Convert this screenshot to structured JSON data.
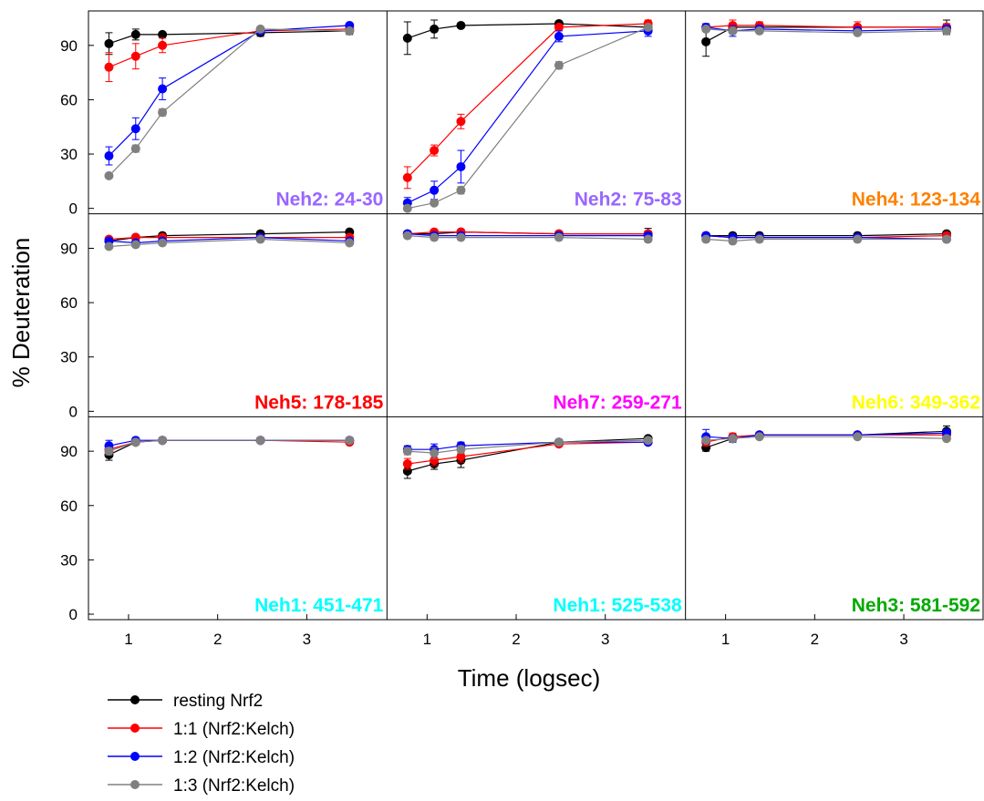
{
  "chart_data": {
    "type": "line",
    "ylabel": "% Deuteration",
    "xlabel": "Time (logsec)",
    "xlim": [
      0.55,
      3.9
    ],
    "ylim": [
      0,
      105
    ],
    "x_ticks": [
      1,
      2,
      3
    ],
    "y_ticks": [
      0,
      30,
      60,
      90
    ],
    "grid": false,
    "legend_position": "bottom-left",
    "series_styles": [
      {
        "name": "resting Nrf2",
        "color": "#000000"
      },
      {
        "name": "1:1 (Nrf2:Kelch)",
        "color": "#ff0000"
      },
      {
        "name": "1:2 (Nrf2:Kelch)",
        "color": "#0000ff"
      },
      {
        "name": "1:3 (Nrf2:Kelch)",
        "color": "#808080"
      }
    ],
    "panels": [
      {
        "label": "Neh2: 24-30",
        "label_color": "#9966ff",
        "x": [
          0.78,
          1.08,
          1.38,
          2.48,
          3.48
        ],
        "series": [
          {
            "name": "resting Nrf2",
            "values": [
              91,
              96,
              96,
              97,
              98
            ],
            "errors": [
              6,
              3,
              1,
              2,
              2
            ]
          },
          {
            "name": "1:1 (Nrf2:Kelch)",
            "values": [
              78,
              84,
              90,
              98,
              99
            ],
            "errors": [
              8,
              7,
              4,
              1,
              1
            ]
          },
          {
            "name": "1:2 (Nrf2:Kelch)",
            "values": [
              29,
              44,
              66,
              98,
              101
            ],
            "errors": [
              5,
              6,
              6,
              1,
              1
            ]
          },
          {
            "name": "1:3 (Nrf2:Kelch)",
            "values": [
              18,
              33,
              53,
              99,
              98
            ],
            "errors": [
              1,
              2,
              2,
              1,
              1
            ]
          }
        ]
      },
      {
        "label": "Neh2: 75-83",
        "label_color": "#9966ff",
        "x": [
          0.78,
          1.08,
          1.38,
          2.48,
          3.48
        ],
        "series": [
          {
            "name": "resting Nrf2",
            "values": [
              94,
              99,
              101,
              102,
              100
            ],
            "errors": [
              9,
              5,
              1,
              1,
              2
            ]
          },
          {
            "name": "1:1 (Nrf2:Kelch)",
            "values": [
              17,
              32,
              48,
              100,
              102
            ],
            "errors": [
              6,
              3,
              4,
              1,
              2
            ]
          },
          {
            "name": "1:2 (Nrf2:Kelch)",
            "values": [
              3,
              10,
              23,
              95,
              98
            ],
            "errors": [
              3,
              5,
              9,
              3,
              3
            ]
          },
          {
            "name": "1:3 (Nrf2:Kelch)",
            "values": [
              0,
              3,
              10,
              79,
              100
            ],
            "errors": [
              1,
              1,
              2,
              2,
              1
            ]
          }
        ]
      },
      {
        "label": "Neh4: 123-134",
        "label_color": "#ff8000",
        "x": [
          0.78,
          1.08,
          1.38,
          2.48,
          3.48
        ],
        "series": [
          {
            "name": "resting Nrf2",
            "values": [
              92,
              100,
              100,
              100,
              100
            ],
            "errors": [
              8,
              2,
              1,
              1,
              4
            ]
          },
          {
            "name": "1:1 (Nrf2:Kelch)",
            "values": [
              100,
              101,
              101,
              100,
              100
            ],
            "errors": [
              2,
              3,
              2,
              3,
              2
            ]
          },
          {
            "name": "1:2 (Nrf2:Kelch)",
            "values": [
              100,
              98,
              99,
              98,
              99
            ],
            "errors": [
              2,
              3,
              2,
              2,
              2
            ]
          },
          {
            "name": "1:3 (Nrf2:Kelch)",
            "values": [
              99,
              98,
              98,
              97,
              98
            ],
            "errors": [
              1,
              1,
              1,
              1,
              1
            ]
          }
        ]
      },
      {
        "label": "Neh5: 178-185",
        "label_color": "#ff0000",
        "x": [
          0.78,
          1.08,
          1.38,
          2.48,
          3.48
        ],
        "series": [
          {
            "name": "resting Nrf2",
            "values": [
              94,
              96,
              97,
              98,
              99
            ],
            "errors": [
              2,
              1,
              1,
              1,
              1
            ]
          },
          {
            "name": "1:1 (Nrf2:Kelch)",
            "values": [
              95,
              96,
              96,
              96,
              96
            ],
            "errors": [
              1,
              1,
              1,
              1,
              1
            ]
          },
          {
            "name": "1:2 (Nrf2:Kelch)",
            "values": [
              94,
              93,
              94,
              96,
              94
            ],
            "errors": [
              1,
              1,
              1,
              1,
              1
            ]
          },
          {
            "name": "1:3 (Nrf2:Kelch)",
            "values": [
              91,
              92,
              93,
              95,
              93
            ],
            "errors": [
              1,
              1,
              1,
              1,
              1
            ]
          }
        ]
      },
      {
        "label": "Neh7: 259-271",
        "label_color": "#ff00ff",
        "x": [
          0.78,
          1.08,
          1.38,
          2.48,
          3.48
        ],
        "series": [
          {
            "name": "resting Nrf2",
            "values": [
              98,
              98,
              99,
              98,
              98
            ],
            "errors": [
              1,
              1,
              1,
              1,
              3
            ]
          },
          {
            "name": "1:1 (Nrf2:Kelch)",
            "values": [
              98,
              99,
              99,
              98,
              98
            ],
            "errors": [
              1,
              1,
              1,
              1,
              1
            ]
          },
          {
            "name": "1:2 (Nrf2:Kelch)",
            "values": [
              98,
              97,
              97,
              97,
              97
            ],
            "errors": [
              1,
              1,
              1,
              1,
              1
            ]
          },
          {
            "name": "1:3 (Nrf2:Kelch)",
            "values": [
              97,
              96,
              96,
              96,
              95
            ],
            "errors": [
              1,
              1,
              1,
              1,
              1
            ]
          }
        ]
      },
      {
        "label": "Neh6: 349-362",
        "label_color": "#ffff00",
        "x": [
          0.78,
          1.08,
          1.38,
          2.48,
          3.48
        ],
        "series": [
          {
            "name": "resting Nrf2",
            "values": [
              97,
              97,
              97,
              97,
              98
            ],
            "errors": [
              1,
              1,
              1,
              1,
              1
            ]
          },
          {
            "name": "1:1 (Nrf2:Kelch)",
            "values": [
              97,
              96,
              96,
              96,
              97
            ],
            "errors": [
              1,
              1,
              1,
              1,
              1
            ]
          },
          {
            "name": "1:2 (Nrf2:Kelch)",
            "values": [
              97,
              96,
              96,
              96,
              95
            ],
            "errors": [
              1,
              1,
              1,
              1,
              1
            ]
          },
          {
            "name": "1:3 (Nrf2:Kelch)",
            "values": [
              95,
              94,
              95,
              95,
              95
            ],
            "errors": [
              1,
              1,
              1,
              1,
              1
            ]
          }
        ]
      },
      {
        "label": "Neh1: 451-471",
        "label_color": "#00ffff",
        "x": [
          0.78,
          1.08,
          1.38,
          2.48,
          3.48
        ],
        "series": [
          {
            "name": "resting Nrf2",
            "values": [
              88,
              95,
              96,
              96,
              96
            ],
            "errors": [
              3,
              1,
              1,
              1,
              1
            ]
          },
          {
            "name": "1:1 (Nrf2:Kelch)",
            "values": [
              91,
              95,
              96,
              96,
              95
            ],
            "errors": [
              2,
              1,
              1,
              1,
              1
            ]
          },
          {
            "name": "1:2 (Nrf2:Kelch)",
            "values": [
              93,
              96,
              96,
              96,
              96
            ],
            "errors": [
              3,
              1,
              1,
              1,
              1
            ]
          },
          {
            "name": "1:3 (Nrf2:Kelch)",
            "values": [
              90,
              95,
              96,
              96,
              96
            ],
            "errors": [
              2,
              1,
              1,
              1,
              1
            ]
          }
        ]
      },
      {
        "label": "Neh1: 525-538",
        "label_color": "#00ffff",
        "x": [
          0.78,
          1.08,
          1.38,
          2.48,
          3.48
        ],
        "series": [
          {
            "name": "resting Nrf2",
            "values": [
              79,
              83,
              85,
              95,
              97
            ],
            "errors": [
              4,
              3,
              4,
              1,
              1
            ]
          },
          {
            "name": "1:1 (Nrf2:Kelch)",
            "values": [
              83,
              85,
              87,
              94,
              95
            ],
            "errors": [
              3,
              3,
              3,
              1,
              1
            ]
          },
          {
            "name": "1:2 (Nrf2:Kelch)",
            "values": [
              91,
              91,
              93,
              95,
              95
            ],
            "errors": [
              2,
              3,
              2,
              1,
              1
            ]
          },
          {
            "name": "1:3 (Nrf2:Kelch)",
            "values": [
              90,
              89,
              91,
              95,
              96
            ],
            "errors": [
              2,
              3,
              2,
              1,
              1
            ]
          }
        ]
      },
      {
        "label": "Neh3: 581-592",
        "label_color": "#00aa00",
        "x": [
          0.78,
          1.08,
          1.38,
          2.48,
          3.48
        ],
        "series": [
          {
            "name": "resting Nrf2",
            "values": [
              92,
              97,
              99,
              99,
              101
            ],
            "errors": [
              2,
              2,
              1,
              1,
              3
            ]
          },
          {
            "name": "1:1 (Nrf2:Kelch)",
            "values": [
              95,
              98,
              99,
              99,
              99
            ],
            "errors": [
              2,
              2,
              1,
              1,
              2
            ]
          },
          {
            "name": "1:2 (Nrf2:Kelch)",
            "values": [
              98,
              97,
              99,
              99,
              100
            ],
            "errors": [
              4,
              2,
              1,
              1,
              2
            ]
          },
          {
            "name": "1:3 (Nrf2:Kelch)",
            "values": [
              96,
              97,
              98,
              98,
              97
            ],
            "errors": [
              1,
              1,
              1,
              1,
              1
            ]
          }
        ]
      }
    ]
  }
}
